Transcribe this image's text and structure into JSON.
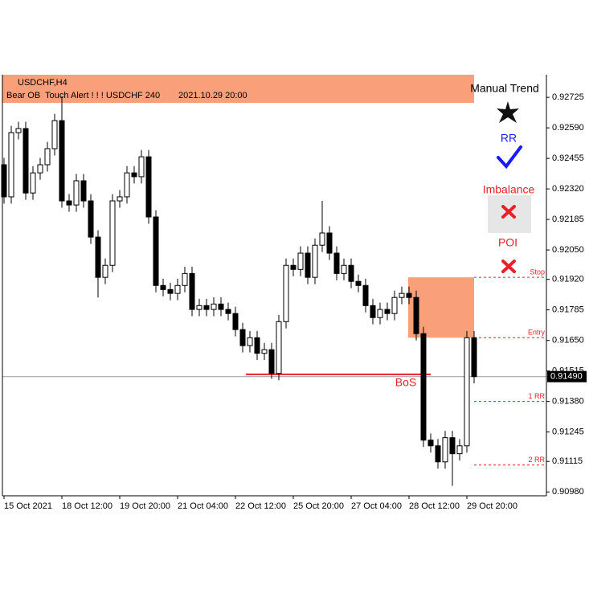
{
  "chart_data": {
    "type": "candlestick",
    "symbol": "USDCHF,H4",
    "alert": "Bear OB  Touch Alert ! ! ! USDCHF 240",
    "alert_time": "2021.10.29 20:00",
    "x": [
      "15 Oct 2021",
      null,
      null,
      null,
      null,
      null,
      null,
      null,
      "18 Oct 12:00",
      null,
      null,
      null,
      null,
      null,
      null,
      null,
      "19 Oct 20:00",
      null,
      null,
      null,
      null,
      null,
      null,
      null,
      "21 Oct 04:00",
      null,
      null,
      null,
      null,
      null,
      null,
      null,
      "22 Oct 12:00",
      null,
      null,
      null,
      null,
      null,
      null,
      null,
      "25 Oct 20:00",
      null,
      null,
      null,
      null,
      null,
      null,
      null,
      "27 Oct 04:00",
      null,
      null,
      null,
      null,
      null,
      null,
      null,
      "28 Oct 12:00",
      null,
      null,
      null,
      null,
      null,
      null,
      null,
      "29 Oct 20:00",
      null
    ],
    "open": [
      0.92427,
      0.92285,
      0.92569,
      0.92587,
      0.92302,
      0.92391,
      0.92427,
      0.92498,
      0.92622,
      0.92267,
      0.92249,
      0.92356,
      0.92267,
      0.92107,
      0.91929,
      0.91982,
      0.92267,
      0.92285,
      0.92391,
      0.92374,
      0.92462,
      0.92196,
      0.91893,
      0.91875,
      0.91858,
      0.91893,
      0.91946,
      0.91787,
      0.91804,
      0.91787,
      0.91811,
      0.91787,
      0.91769,
      0.91698,
      0.91627,
      0.91662,
      0.91593,
      0.91609,
      0.91504,
      0.91733,
      0.91982,
      0.91964,
      0.92036,
      0.91929,
      0.92071,
      0.92125,
      0.92036,
      0.91946,
      0.91982,
      0.91911,
      0.91893,
      0.91804,
      0.91751,
      0.91787,
      0.91769,
      0.9184,
      0.91858,
      0.9184,
      0.9168,
      0.91209,
      0.91184,
      0.91113,
      0.9122,
      0.91149,
      0.91184,
      0.91662
    ],
    "high": [
      0.92457,
      0.92599,
      0.92617,
      0.92617,
      0.92421,
      0.92457,
      0.92528,
      0.92652,
      0.92729,
      0.92297,
      0.92386,
      0.92386,
      0.92297,
      0.92137,
      0.92012,
      0.92297,
      0.92315,
      0.92421,
      0.92421,
      0.92492,
      0.92492,
      0.92226,
      0.91923,
      0.91905,
      0.91923,
      0.91976,
      0.91976,
      0.91834,
      0.91834,
      0.91841,
      0.91841,
      0.91817,
      0.91799,
      0.91728,
      0.91692,
      0.91692,
      0.91639,
      0.91639,
      0.91763,
      0.92012,
      0.92012,
      0.92066,
      0.92066,
      0.92101,
      0.92267,
      0.92155,
      0.92066,
      0.92012,
      0.92012,
      0.91941,
      0.91923,
      0.91834,
      0.91817,
      0.91817,
      0.9187,
      0.91888,
      0.91888,
      0.9187,
      0.9171,
      0.91239,
      0.91214,
      0.9125,
      0.9125,
      0.91214,
      0.91692,
      0.91692
    ],
    "low": [
      0.92255,
      0.92255,
      0.92539,
      0.92272,
      0.92272,
      0.92361,
      0.92397,
      0.92468,
      0.92237,
      0.92219,
      0.92219,
      0.92237,
      0.92077,
      0.9184,
      0.91899,
      0.91952,
      0.92237,
      0.92255,
      0.92344,
      0.92344,
      0.92166,
      0.91863,
      0.91845,
      0.91828,
      0.91828,
      0.91863,
      0.91757,
      0.91757,
      0.91757,
      0.91757,
      0.91757,
      0.91739,
      0.91668,
      0.91597,
      0.91597,
      0.91563,
      0.91563,
      0.9148,
      0.91474,
      0.91703,
      0.91934,
      0.91934,
      0.91899,
      0.91899,
      0.92041,
      0.92006,
      0.91916,
      0.91916,
      0.91881,
      0.91863,
      0.91774,
      0.91721,
      0.91721,
      0.91739,
      0.91739,
      0.9181,
      0.9181,
      0.9165,
      0.91179,
      0.91154,
      0.91083,
      0.91083,
      0.91007,
      0.91119,
      0.91154,
      0.9146
    ],
    "close": [
      0.92285,
      0.92569,
      0.92587,
      0.92302,
      0.92391,
      0.92427,
      0.92498,
      0.92622,
      0.92267,
      0.92249,
      0.92356,
      0.92267,
      0.92107,
      0.91929,
      0.91982,
      0.92267,
      0.92285,
      0.92391,
      0.92374,
      0.92462,
      0.92196,
      0.91893,
      0.91875,
      0.91858,
      0.91893,
      0.91946,
      0.91787,
      0.91804,
      0.91787,
      0.91811,
      0.91787,
      0.91769,
      0.91698,
      0.91627,
      0.91662,
      0.91593,
      0.91609,
      0.91504,
      0.91733,
      0.91982,
      0.91964,
      0.92036,
      0.91929,
      0.92071,
      0.92125,
      0.92036,
      0.91946,
      0.91982,
      0.91911,
      0.91893,
      0.91804,
      0.91751,
      0.91787,
      0.91769,
      0.9184,
      0.91858,
      0.9184,
      0.9168,
      0.91209,
      0.91184,
      0.91113,
      0.9122,
      0.91149,
      0.91184,
      0.91662,
      0.9149
    ],
    "up_color": "#ffffff",
    "down_color": "#000000",
    "ylim": [
      0.90963,
      0.92825
    ],
    "yticks": [
      0.92725,
      {
        "value": 0.9259,
        "label": "0.92590"
      },
      0.92455,
      {
        "value": 0.9232,
        "label": "0.92320"
      },
      0.92185,
      {
        "value": 0.9205,
        "label": "0.92050"
      },
      {
        "value": 0.9192,
        "label": "0.91920"
      },
      0.91785,
      {
        "value": 0.9165,
        "label": "0.91650"
      },
      0.91515,
      {
        "value": 0.9138,
        "label": "0.91380"
      },
      0.91245,
      0.91115,
      {
        "value": 0.9098,
        "label": "0.90980"
      }
    ],
    "current_price": {
      "value": 0.9149,
      "label": "0.91490"
    },
    "order_block": {
      "high": 0.91929,
      "low": 0.91662,
      "color": "#f9a07a"
    },
    "bos": {
      "label": "BoS",
      "value": 0.915,
      "color": "#e8202a"
    },
    "levels": [
      {
        "name": "Stop",
        "value": 0.91929
      },
      {
        "name": "Entry",
        "value": 0.91662
      },
      {
        "name": "1 RR",
        "value": 0.9138
      },
      {
        "name": "2 RR",
        "value": 0.91099
      }
    ],
    "panel": {
      "title": "Manual Trend",
      "rr": "RR",
      "imbalance": "Imbalance",
      "poi": "POI"
    }
  }
}
